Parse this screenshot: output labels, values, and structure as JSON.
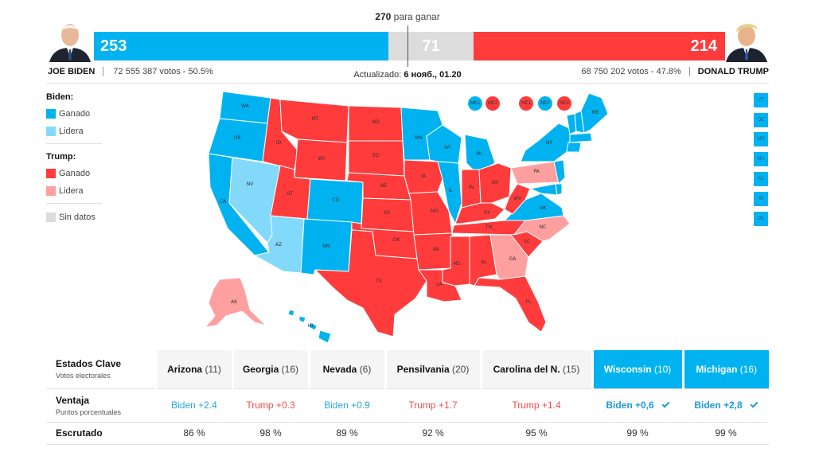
{
  "header": {
    "to_win_number": "270",
    "to_win_text": "para ganar",
    "updated_label": "Actualizado:",
    "updated_value": "6 нояб., 01.20"
  },
  "biden": {
    "name": "JOE BIDEN",
    "electoral": "253",
    "votes": "72 555 387 votos - 50.5%",
    "color": "#00b3f0"
  },
  "trump": {
    "name": "DONALD TRUMP",
    "electoral": "214",
    "votes": "68 750 202 votos - 47.8%",
    "color": "#ff3b3b"
  },
  "no_data_electoral": "71",
  "legend": {
    "biden_title": "Biden:",
    "trump_title": "Trump:",
    "won": "Ganado",
    "leading": "Lidera",
    "no_data": "Sin datos",
    "colors": {
      "biden_won": "#00b3f0",
      "biden_leading": "#82d9fa",
      "trump_won": "#ff3b3b",
      "trump_leading": "#ff9fa0",
      "no_data": "#dcdcdc"
    }
  },
  "map": {
    "icons": [
      "map-of-usa"
    ],
    "states": [
      {
        "abbr": "WA",
        "status": "biden_won"
      },
      {
        "abbr": "OR",
        "status": "biden_won"
      },
      {
        "abbr": "CA",
        "status": "biden_won"
      },
      {
        "abbr": "NV",
        "status": "biden_leading"
      },
      {
        "abbr": "AZ",
        "status": "biden_leading"
      },
      {
        "abbr": "ID",
        "status": "trump_won"
      },
      {
        "abbr": "MT",
        "status": "trump_won"
      },
      {
        "abbr": "WY",
        "status": "trump_won"
      },
      {
        "abbr": "UT",
        "status": "trump_won"
      },
      {
        "abbr": "CO",
        "status": "biden_won"
      },
      {
        "abbr": "NM",
        "status": "biden_won"
      },
      {
        "abbr": "ND",
        "status": "trump_won"
      },
      {
        "abbr": "SD",
        "status": "trump_won"
      },
      {
        "abbr": "NE",
        "status": "trump_won"
      },
      {
        "abbr": "KS",
        "status": "trump_won"
      },
      {
        "abbr": "OK",
        "status": "trump_won"
      },
      {
        "abbr": "TX",
        "status": "trump_won"
      },
      {
        "abbr": "MN",
        "status": "biden_won"
      },
      {
        "abbr": "IA",
        "status": "trump_won"
      },
      {
        "abbr": "MO",
        "status": "trump_won"
      },
      {
        "abbr": "AR",
        "status": "trump_won"
      },
      {
        "abbr": "LA",
        "status": "trump_won"
      },
      {
        "abbr": "WI",
        "status": "biden_won"
      },
      {
        "abbr": "IL",
        "status": "biden_won"
      },
      {
        "abbr": "MI",
        "status": "biden_won"
      },
      {
        "abbr": "IN",
        "status": "trump_won"
      },
      {
        "abbr": "OH",
        "status": "trump_won"
      },
      {
        "abbr": "KY",
        "status": "trump_won"
      },
      {
        "abbr": "TN",
        "status": "trump_won"
      },
      {
        "abbr": "MS",
        "status": "trump_won"
      },
      {
        "abbr": "AL",
        "status": "trump_won"
      },
      {
        "abbr": "GA",
        "status": "trump_leading"
      },
      {
        "abbr": "FL",
        "status": "trump_won"
      },
      {
        "abbr": "SC",
        "status": "trump_won"
      },
      {
        "abbr": "NC",
        "status": "trump_leading"
      },
      {
        "abbr": "VA",
        "status": "biden_won"
      },
      {
        "abbr": "WV",
        "status": "trump_won"
      },
      {
        "abbr": "PA",
        "status": "trump_leading"
      },
      {
        "abbr": "NY",
        "status": "biden_won"
      },
      {
        "abbr": "VT",
        "status": "biden_won"
      },
      {
        "abbr": "NH",
        "status": "biden_won"
      },
      {
        "abbr": "ME",
        "status": "biden_won"
      },
      {
        "abbr": "MA",
        "status": "biden_won"
      },
      {
        "abbr": "CT",
        "status": "biden_won"
      },
      {
        "abbr": "NJ",
        "status": "biden_won"
      },
      {
        "abbr": "DE",
        "status": "biden_won"
      },
      {
        "abbr": "MD",
        "status": "biden_won"
      },
      {
        "abbr": "AK",
        "status": "trump_leading"
      },
      {
        "abbr": "HI",
        "status": "biden_won"
      }
    ],
    "district_dots": [
      {
        "label": "ME1",
        "status": "biden_won"
      },
      {
        "label": "ME2",
        "status": "trump_won"
      },
      {
        "label": "NE1",
        "status": "trump_won"
      },
      {
        "label": "NE2",
        "status": "biden_won"
      },
      {
        "label": "NE3",
        "status": "trump_won"
      }
    ],
    "small_states": [
      "VT",
      "DE",
      "MD",
      "MA",
      "NJ",
      "RI",
      "DC"
    ]
  },
  "key_states": {
    "title": "Estados Clave",
    "subtitle": "Votos electorales",
    "advantage_title": "Ventaja",
    "advantage_subtitle": "Puntos porcentuales",
    "counted_title": "Escrutado",
    "states": [
      {
        "name": "Arizona",
        "ev": "(11)",
        "advantage": "Biden +2.4",
        "party": "b",
        "called": false,
        "counted": "86 %"
      },
      {
        "name": "Georgia",
        "ev": "(16)",
        "advantage": "Trump +0.3",
        "party": "t",
        "called": false,
        "counted": "98 %"
      },
      {
        "name": "Nevada",
        "ev": "(6)",
        "advantage": "Biden +0.9",
        "party": "b",
        "called": false,
        "counted": "89 %"
      },
      {
        "name": "Pensilvania",
        "ev": "(20)",
        "advantage": "Trump +1.7",
        "party": "t",
        "called": false,
        "counted": "92 %"
      },
      {
        "name": "Carolina del N.",
        "ev": "(15)",
        "advantage": "Trump +1.4",
        "party": "t",
        "called": false,
        "counted": "95 %"
      },
      {
        "name": "Wisconsin",
        "ev": "(10)",
        "advantage": "Biden +0,6",
        "party": "b",
        "called": true,
        "counted": "99 %"
      },
      {
        "name": "Michigan",
        "ev": "(16)",
        "advantage": "Biden +2,8",
        "party": "b",
        "called": true,
        "counted": "99 %"
      }
    ]
  }
}
